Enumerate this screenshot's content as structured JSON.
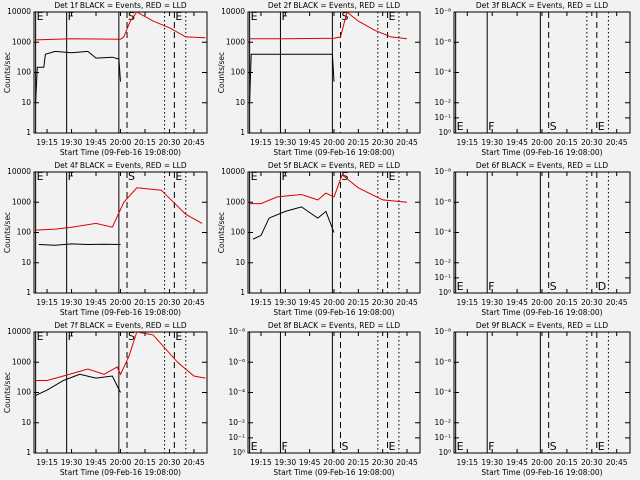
{
  "chart_data": [
    {
      "type": "line",
      "title": "Det 1f BLACK = Events, RED = LLD",
      "xlabel": "Start Time (09-Feb-16 19:08:00)",
      "ylabel": "Counts/sec",
      "log_y": true,
      "xlim": [
        "19:07",
        "20:53"
      ],
      "xticks": [
        "19:15",
        "19:30",
        "19:45",
        "20:00",
        "20:15",
        "20:30",
        "20:45"
      ],
      "ylim": [
        1,
        10000
      ],
      "yticks": [
        1,
        10,
        100,
        1000,
        10000
      ],
      "marker_label_position": "top",
      "markers": [
        {
          "x": "19:08",
          "style": "solid",
          "label": "E"
        },
        {
          "x": "19:27",
          "style": "solid",
          "label": "F"
        },
        {
          "x": "19:59",
          "style": "solid"
        },
        {
          "x": "20:04",
          "style": "dashed",
          "label": "S"
        },
        {
          "x": "20:27",
          "style": "dotted"
        },
        {
          "x": "20:33",
          "style": "dashed",
          "label": "E"
        },
        {
          "x": "20:40",
          "style": "dotted"
        }
      ],
      "series": [
        {
          "color": "#000000",
          "x": [
            "19:08",
            "19:09",
            "19:13",
            "19:14",
            "19:20",
            "19:30",
            "19:40",
            "19:45",
            "19:55",
            "19:59",
            "20:00"
          ],
          "values": [
            10,
            150,
            150,
            400,
            500,
            450,
            500,
            300,
            320,
            280,
            50
          ]
        },
        {
          "color": "#dd0000",
          "x": [
            "19:08",
            "19:30",
            "20:00",
            "20:02",
            "20:06",
            "20:10",
            "20:20",
            "20:30",
            "20:40",
            "20:52"
          ],
          "values": [
            1200,
            1300,
            1250,
            1500,
            5000,
            10000,
            5000,
            3000,
            1500,
            1400
          ]
        }
      ]
    },
    {
      "type": "line",
      "title": "Det 2f BLACK = Events, RED = LLD",
      "xlabel": "Start Time (09-Feb-16 19:08:00)",
      "ylabel": "Counts/sec",
      "log_y": true,
      "xlim": [
        "19:07",
        "20:53"
      ],
      "xticks": [
        "19:15",
        "19:30",
        "19:45",
        "20:00",
        "20:15",
        "20:30",
        "20:45"
      ],
      "ylim": [
        1,
        10000
      ],
      "yticks": [
        1,
        10,
        100,
        1000,
        10000
      ],
      "marker_label_position": "top",
      "markers": [
        {
          "x": "19:08",
          "style": "solid",
          "label": "E"
        },
        {
          "x": "19:27",
          "style": "solid",
          "label": "F"
        },
        {
          "x": "19:59",
          "style": "solid"
        },
        {
          "x": "20:04",
          "style": "dashed",
          "label": "S"
        },
        {
          "x": "20:27",
          "style": "dotted"
        },
        {
          "x": "20:33",
          "style": "dashed",
          "label": "E"
        },
        {
          "x": "20:40",
          "style": "dotted"
        }
      ],
      "series": [
        {
          "color": "#000000",
          "x": [
            "19:08",
            "19:09",
            "19:30",
            "19:59",
            "20:00"
          ],
          "values": [
            10,
            400,
            400,
            400,
            50
          ]
        },
        {
          "color": "#dd0000",
          "x": [
            "19:08",
            "19:30",
            "20:00",
            "20:04",
            "20:08",
            "20:15",
            "20:25",
            "20:35",
            "20:45"
          ],
          "values": [
            1300,
            1300,
            1350,
            1500,
            10000,
            5000,
            2500,
            1500,
            1300
          ]
        }
      ]
    },
    {
      "type": "line",
      "title": "Det 3f BLACK = Events, RED = LLD",
      "xlabel": "Start Time (09-Feb-16 19:08:00)",
      "log_y": true,
      "xlim": [
        "19:07",
        "20:53"
      ],
      "xticks": [
        "19:15",
        "19:30",
        "19:45",
        "20:00",
        "20:15",
        "20:30",
        "20:45"
      ],
      "ylim": [
        1,
        1e-08
      ],
      "yticks": [
        {
          "value": 1e-08,
          "label": "10⁻⁸"
        },
        {
          "value": 1e-06,
          "label": "10⁻⁶"
        },
        {
          "value": 0.0001,
          "label": "10⁻⁴"
        },
        {
          "value": 0.01,
          "label": "10⁻²"
        },
        {
          "value": 0.1,
          "label": "10⁻¹"
        },
        {
          "value": 1,
          "label": "10⁰"
        }
      ],
      "marker_label_position": "bottom",
      "markers": [
        {
          "x": "19:08",
          "style": "solid",
          "label": "E"
        },
        {
          "x": "19:27",
          "style": "solid",
          "label": "F"
        },
        {
          "x": "19:59",
          "style": "solid"
        },
        {
          "x": "20:04",
          "style": "dashed",
          "label": "S"
        },
        {
          "x": "20:27",
          "style": "dotted"
        },
        {
          "x": "20:33",
          "style": "dashed",
          "label": "E"
        },
        {
          "x": "20:40",
          "style": "dotted"
        }
      ],
      "series": []
    },
    {
      "type": "line",
      "title": "Det 4f BLACK = Events, RED = LLD",
      "xlabel": "Start Time (09-Feb-16 19:08:00)",
      "ylabel": "Counts/sec",
      "log_y": true,
      "xlim": [
        "19:07",
        "20:53"
      ],
      "xticks": [
        "19:15",
        "19:30",
        "19:45",
        "20:00",
        "20:15",
        "20:30",
        "20:45"
      ],
      "ylim": [
        1,
        10000
      ],
      "yticks": [
        1,
        10,
        100,
        1000,
        10000
      ],
      "marker_label_position": "top",
      "markers": [
        {
          "x": "19:08",
          "style": "solid",
          "label": "E"
        },
        {
          "x": "19:27",
          "style": "solid",
          "label": "F"
        },
        {
          "x": "19:59",
          "style": "solid"
        },
        {
          "x": "20:04",
          "style": "dashed",
          "label": "S"
        },
        {
          "x": "20:27",
          "style": "dotted"
        },
        {
          "x": "20:33",
          "style": "dashed",
          "label": "E"
        },
        {
          "x": "20:40",
          "style": "dotted"
        }
      ],
      "series": [
        {
          "color": "#000000",
          "x": [
            "19:10",
            "19:20",
            "19:30",
            "19:40",
            "19:50",
            "20:00"
          ],
          "values": [
            40,
            38,
            42,
            40,
            41,
            40
          ]
        },
        {
          "color": "#dd0000",
          "x": [
            "19:08",
            "19:20",
            "19:30",
            "19:45",
            "19:55",
            "20:02",
            "20:10",
            "20:25",
            "20:40",
            "20:50"
          ],
          "values": [
            120,
            130,
            150,
            200,
            150,
            1000,
            3000,
            2500,
            400,
            200
          ]
        }
      ]
    },
    {
      "type": "line",
      "title": "Det 5f BLACK = Events, RED = LLD",
      "xlabel": "Start Time (09-Feb-16 19:08:00)",
      "ylabel": "Counts/sec",
      "log_y": true,
      "xlim": [
        "19:07",
        "20:53"
      ],
      "xticks": [
        "19:15",
        "19:30",
        "19:45",
        "20:00",
        "20:15",
        "20:30",
        "20:45"
      ],
      "ylim": [
        1,
        10000
      ],
      "yticks": [
        1,
        10,
        100,
        1000,
        10000
      ],
      "marker_label_position": "top",
      "markers": [
        {
          "x": "19:08",
          "style": "solid",
          "label": "E"
        },
        {
          "x": "19:27",
          "style": "solid",
          "label": "F"
        },
        {
          "x": "19:59",
          "style": "solid"
        },
        {
          "x": "20:04",
          "style": "dashed",
          "label": "S"
        },
        {
          "x": "20:27",
          "style": "dotted"
        },
        {
          "x": "20:33",
          "style": "dashed",
          "label": "E"
        },
        {
          "x": "20:40",
          "style": "dotted"
        }
      ],
      "series": [
        {
          "color": "#000000",
          "x": [
            "19:10",
            "19:15",
            "19:20",
            "19:30",
            "19:40",
            "19:50",
            "19:55",
            "20:00"
          ],
          "values": [
            60,
            80,
            300,
            500,
            700,
            300,
            500,
            100
          ]
        },
        {
          "color": "#dd0000",
          "x": [
            "19:08",
            "19:15",
            "19:25",
            "19:40",
            "19:50",
            "19:55",
            "20:00",
            "20:05",
            "20:15",
            "20:30",
            "20:45"
          ],
          "values": [
            900,
            900,
            1500,
            1800,
            1200,
            2000,
            1500,
            8000,
            3000,
            1200,
            1000
          ]
        }
      ]
    },
    {
      "type": "line",
      "title": "Det 6f BLACK = Events, RED = LLD",
      "xlabel": "Start Time (09-Feb-16 19:08:00)",
      "log_y": true,
      "xlim": [
        "19:07",
        "20:53"
      ],
      "xticks": [
        "19:15",
        "19:30",
        "19:45",
        "20:00",
        "20:15",
        "20:30",
        "20:45"
      ],
      "ylim": [
        1,
        1e-08
      ],
      "yticks": [
        {
          "value": 1e-08,
          "label": "10⁻⁸"
        },
        {
          "value": 1e-06,
          "label": "10⁻⁶"
        },
        {
          "value": 0.0001,
          "label": "10⁻⁴"
        },
        {
          "value": 0.01,
          "label": "10⁻²"
        },
        {
          "value": 0.1,
          "label": "10⁻¹"
        },
        {
          "value": 1,
          "label": "10⁰"
        }
      ],
      "marker_label_position": "bottom",
      "markers": [
        {
          "x": "19:08",
          "style": "solid",
          "label": "E"
        },
        {
          "x": "19:27",
          "style": "solid",
          "label": "F"
        },
        {
          "x": "19:59",
          "style": "solid"
        },
        {
          "x": "20:04",
          "style": "dashed",
          "label": "S"
        },
        {
          "x": "20:27",
          "style": "dotted"
        },
        {
          "x": "20:33",
          "style": "dashed",
          "label": "D"
        },
        {
          "x": "20:40",
          "style": "dotted"
        }
      ],
      "series": []
    },
    {
      "type": "line",
      "title": "Det 7f BLACK = Events, RED = LLD",
      "xlabel": "Start Time (09-Feb-16 19:08:00)",
      "ylabel": "Counts/sec",
      "log_y": true,
      "xlim": [
        "19:07",
        "20:53"
      ],
      "xticks": [
        "19:15",
        "19:30",
        "19:45",
        "20:00",
        "20:15",
        "20:30",
        "20:45"
      ],
      "ylim": [
        1,
        10000
      ],
      "yticks": [
        1,
        10,
        100,
        1000,
        10000
      ],
      "marker_label_position": "top",
      "markers": [
        {
          "x": "19:08",
          "style": "solid",
          "label": "E"
        },
        {
          "x": "19:27",
          "style": "solid",
          "label": "F"
        },
        {
          "x": "19:59",
          "style": "solid"
        },
        {
          "x": "20:04",
          "style": "dashed",
          "label": "S"
        },
        {
          "x": "20:27",
          "style": "dotted"
        },
        {
          "x": "20:33",
          "style": "dashed",
          "label": "E"
        },
        {
          "x": "20:40",
          "style": "dotted"
        }
      ],
      "series": [
        {
          "color": "#000000",
          "x": [
            "19:08",
            "19:15",
            "19:25",
            "19:35",
            "19:45",
            "19:55",
            "20:00"
          ],
          "values": [
            80,
            120,
            250,
            400,
            300,
            350,
            100
          ]
        },
        {
          "color": "#dd0000",
          "x": [
            "19:08",
            "19:15",
            "19:25",
            "19:40",
            "19:50",
            "19:58",
            "20:00",
            "20:05",
            "20:10",
            "20:20",
            "20:35",
            "20:45",
            "20:52"
          ],
          "values": [
            250,
            250,
            350,
            600,
            400,
            700,
            400,
            1500,
            10000,
            8000,
            1000,
            350,
            300
          ]
        }
      ]
    },
    {
      "type": "line",
      "title": "Det 8f BLACK = Events, RED = LLD",
      "xlabel": "Start Time (09-Feb-16 19:08:00)",
      "log_y": true,
      "xlim": [
        "19:07",
        "20:53"
      ],
      "xticks": [
        "19:15",
        "19:30",
        "19:45",
        "20:00",
        "20:15",
        "20:30",
        "20:45"
      ],
      "ylim": [
        1,
        1e-08
      ],
      "yticks": [
        {
          "value": 1e-08,
          "label": "10⁻⁸"
        },
        {
          "value": 1e-06,
          "label": "10⁻⁶"
        },
        {
          "value": 0.0001,
          "label": "10⁻⁴"
        },
        {
          "value": 0.01,
          "label": "10⁻²"
        },
        {
          "value": 0.1,
          "label": "10⁻¹"
        },
        {
          "value": 1,
          "label": "10⁰"
        }
      ],
      "marker_label_position": "bottom",
      "markers": [
        {
          "x": "19:08",
          "style": "solid",
          "label": "E"
        },
        {
          "x": "19:27",
          "style": "solid",
          "label": "F"
        },
        {
          "x": "19:59",
          "style": "solid"
        },
        {
          "x": "20:04",
          "style": "dashed",
          "label": "S"
        },
        {
          "x": "20:27",
          "style": "dotted"
        },
        {
          "x": "20:33",
          "style": "dashed",
          "label": "E"
        },
        {
          "x": "20:40",
          "style": "dotted"
        }
      ],
      "series": []
    },
    {
      "type": "line",
      "title": "Det 9f BLACK = Events, RED = LLD",
      "xlabel": "Start Time (09-Feb-16 19:08:00)",
      "log_y": true,
      "xlim": [
        "19:07",
        "20:53"
      ],
      "xticks": [
        "19:15",
        "19:30",
        "19:45",
        "20:00",
        "20:15",
        "20:30",
        "20:45"
      ],
      "ylim": [
        1,
        1e-08
      ],
      "yticks": [
        {
          "value": 1e-08,
          "label": "10⁻⁸"
        },
        {
          "value": 1e-06,
          "label": "10⁻⁶"
        },
        {
          "value": 0.0001,
          "label": "10⁻⁴"
        },
        {
          "value": 0.01,
          "label": "10⁻²"
        },
        {
          "value": 0.1,
          "label": "10⁻¹"
        },
        {
          "value": 1,
          "label": "10⁰"
        }
      ],
      "marker_label_position": "bottom",
      "markers": [
        {
          "x": "19:08",
          "style": "solid",
          "label": "E"
        },
        {
          "x": "19:27",
          "style": "solid",
          "label": "F"
        },
        {
          "x": "19:59",
          "style": "solid"
        },
        {
          "x": "20:04",
          "style": "dashed",
          "label": "S"
        },
        {
          "x": "20:27",
          "style": "dotted"
        },
        {
          "x": "20:33",
          "style": "dashed",
          "label": "E"
        },
        {
          "x": "20:40",
          "style": "dotted"
        }
      ],
      "series": []
    }
  ]
}
